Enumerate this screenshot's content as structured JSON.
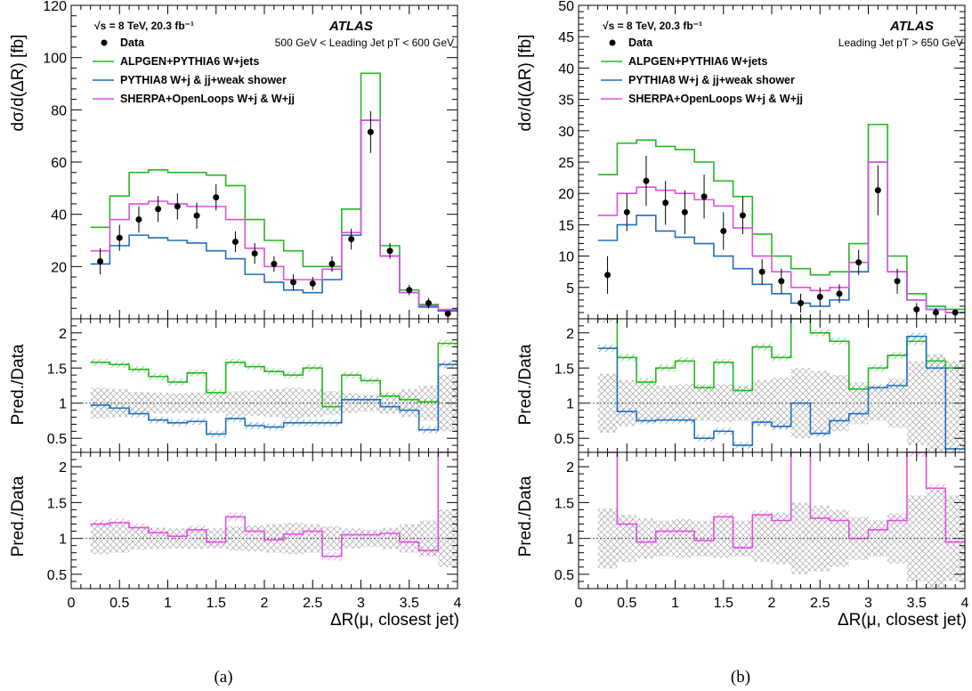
{
  "colors": {
    "data": "#000000",
    "alpgen": "#22b822",
    "pythia": "#1f6fbf",
    "sherpa": "#e050e0",
    "uncertainty": "#9a9a9a"
  },
  "chart_data": [
    {
      "type": "line",
      "panel_label": "(a)",
      "experiment": "ATLAS",
      "energy_label": "√s = 8 TeV, 20.3 fb⁻¹",
      "region_label": "500 GeV < Leading Jet pT < 600 GeV",
      "xlabel": "ΔR(μ, closest jet)",
      "ylabel_main": "dσ/d(ΔR) [fb]",
      "ylabel_ratio": "Pred./Data",
      "xlim": [
        0,
        4
      ],
      "ylim_main": [
        0,
        120
      ],
      "ylim_ratio": [
        0.3,
        2.2
      ],
      "x_ticks": [
        "0",
        "0.5",
        "1",
        "1.5",
        "2",
        "2.5",
        "3",
        "3.5",
        "4"
      ],
      "y_ticks_main": [
        "20",
        "40",
        "60",
        "80",
        "100",
        "120"
      ],
      "y_ticks_ratio": [
        "0.5",
        "1",
        "1.5",
        "2"
      ],
      "legend": {
        "data": "Data",
        "alpgen": "ALPGEN+PYTHIA6 W+jets",
        "pythia": "PYTHIA8 W+j & jj+weak shower",
        "sherpa": "SHERPA+OpenLoops W+j & W+jj"
      },
      "bin_edges": [
        0.2,
        0.4,
        0.6,
        0.8,
        1.0,
        1.2,
        1.4,
        1.6,
        1.8,
        2.0,
        2.2,
        2.4,
        2.6,
        2.8,
        3.0,
        3.2,
        3.4,
        3.6,
        3.8,
        4.0
      ],
      "data": {
        "x": [
          0.3,
          0.5,
          0.7,
          0.9,
          1.1,
          1.3,
          1.5,
          1.7,
          1.9,
          2.1,
          2.3,
          2.5,
          2.7,
          2.9,
          3.1,
          3.3,
          3.5,
          3.7,
          3.9
        ],
        "y": [
          22,
          31,
          38,
          42,
          43,
          39.5,
          46.5,
          29.5,
          25,
          21,
          14,
          13.5,
          21,
          30.5,
          71.5,
          26,
          11,
          6,
          2
        ],
        "err": [
          5,
          5,
          5,
          5,
          5,
          5,
          5,
          4,
          4,
          3,
          3,
          2.5,
          3,
          4,
          8,
          3,
          2,
          2,
          1
        ]
      },
      "series": [
        {
          "name": "ALPGEN+PYTHIA6 W+jets",
          "key": "alpgen",
          "values": [
            35,
            47,
            56,
            57,
            56,
            56,
            55,
            51,
            38,
            30,
            26,
            20,
            20,
            42,
            94,
            28,
            11,
            5.5,
            3.5
          ]
        },
        {
          "name": "PYTHIA8 W+j & jj+weak shower",
          "key": "pythia",
          "values": [
            21,
            28,
            32,
            31,
            30,
            29,
            26,
            23,
            17,
            14,
            11,
            10,
            15,
            32,
            76,
            24,
            10,
            4.5,
            3
          ]
        },
        {
          "name": "SHERPA+OpenLoops W+j & W+jj",
          "key": "sherpa",
          "values": [
            26,
            38,
            44,
            45,
            44,
            43,
            43,
            38,
            27,
            20,
            15,
            15,
            19,
            33,
            76,
            24,
            10,
            5,
            3.5
          ]
        }
      ],
      "ratio_top": {
        "band_halfwidth": [
          0.22,
          0.2,
          0.16,
          0.15,
          0.14,
          0.15,
          0.14,
          0.17,
          0.18,
          0.2,
          0.22,
          0.2,
          0.17,
          0.14,
          0.12,
          0.15,
          0.2,
          0.25,
          0.4
        ],
        "alpgen": [
          1.58,
          1.55,
          1.48,
          1.38,
          1.3,
          1.43,
          1.15,
          1.58,
          1.52,
          1.45,
          1.4,
          1.5,
          0.95,
          1.4,
          1.32,
          1.1,
          1.05,
          1.02,
          1.85
        ],
        "pythia": [
          0.97,
          0.93,
          0.85,
          0.76,
          0.72,
          0.74,
          0.56,
          0.78,
          0.68,
          0.66,
          0.72,
          0.72,
          0.72,
          1.05,
          1.05,
          0.95,
          0.9,
          0.62,
          1.55
        ]
      },
      "ratio_bottom": {
        "band_halfwidth": [
          0.22,
          0.2,
          0.16,
          0.15,
          0.14,
          0.15,
          0.14,
          0.17,
          0.18,
          0.2,
          0.22,
          0.2,
          0.17,
          0.14,
          0.12,
          0.15,
          0.2,
          0.25,
          0.4
        ],
        "sherpa": [
          1.2,
          1.22,
          1.15,
          1.08,
          1.03,
          1.12,
          0.95,
          1.3,
          1.1,
          0.98,
          1.06,
          1.1,
          0.75,
          1.05,
          1.05,
          1.07,
          0.95,
          0.83,
          2.25
        ]
      }
    },
    {
      "type": "line",
      "panel_label": "(b)",
      "experiment": "ATLAS",
      "energy_label": "√s = 8 TeV, 20.3 fb⁻¹",
      "region_label": "Leading Jet pT > 650 GeV",
      "xlabel": "ΔR(μ, closest jet)",
      "ylabel_main": "dσ/d(ΔR) [fb]",
      "ylabel_ratio": "Pred./Data",
      "xlim": [
        0,
        4
      ],
      "ylim_main": [
        0,
        50
      ],
      "ylim_ratio": [
        0.3,
        2.2
      ],
      "x_ticks": [
        "0",
        "0.5",
        "1",
        "1.5",
        "2",
        "2.5",
        "3",
        "3.5",
        "4"
      ],
      "y_ticks_main": [
        "5",
        "10",
        "15",
        "20",
        "25",
        "30",
        "35",
        "40",
        "45",
        "50"
      ],
      "y_ticks_ratio": [
        "0.5",
        "1",
        "1.5",
        "2"
      ],
      "legend": {
        "data": "Data",
        "alpgen": "ALPGEN+PYTHIA6 W+jets",
        "pythia": "PYTHIA8 W+j & jj+weak shower",
        "sherpa": "SHERPA+OpenLoops W+j & W+jj"
      },
      "bin_edges": [
        0.2,
        0.4,
        0.6,
        0.8,
        1.0,
        1.2,
        1.4,
        1.6,
        1.8,
        2.0,
        2.2,
        2.4,
        2.6,
        2.8,
        3.0,
        3.2,
        3.4,
        3.6,
        3.8,
        4.0
      ],
      "data": {
        "x": [
          0.3,
          0.5,
          0.7,
          0.9,
          1.1,
          1.3,
          1.5,
          1.7,
          1.9,
          2.1,
          2.3,
          2.5,
          2.7,
          2.9,
          3.1,
          3.3,
          3.5,
          3.7,
          3.9
        ],
        "y": [
          7,
          17,
          22,
          18.5,
          17,
          19.5,
          14,
          16.5,
          7.5,
          6,
          2.5,
          3.5,
          4,
          9,
          20.5,
          6,
          1.5,
          1,
          1
        ],
        "err": [
          3,
          3,
          4,
          3.5,
          3.5,
          3.5,
          3,
          3,
          2,
          2,
          1.5,
          1.5,
          1.5,
          2,
          4,
          2,
          1,
          0.7,
          0.5
        ]
      },
      "series": [
        {
          "name": "ALPGEN+PYTHIA6 W+jets",
          "key": "alpgen",
          "values": [
            23,
            28,
            28.5,
            27.5,
            27,
            25,
            22,
            19.5,
            13.5,
            10,
            8,
            7,
            7.5,
            12,
            31,
            10,
            4,
            2,
            1.5
          ]
        },
        {
          "name": "PYTHIA8 W+j & jj+weak shower",
          "key": "pythia",
          "values": [
            12.5,
            15,
            16.5,
            14,
            13,
            12,
            10,
            8,
            5.5,
            4,
            2.5,
            2,
            3,
            7.5,
            25,
            7.5,
            3,
            1.5,
            1
          ]
        },
        {
          "name": "SHERPA+OpenLoops W+j & W+jj",
          "key": "sherpa",
          "values": [
            16.5,
            20,
            21,
            20.5,
            20,
            19,
            18,
            14.5,
            10,
            7.5,
            5,
            4.5,
            5,
            9,
            25,
            7.5,
            3,
            1.5,
            1
          ]
        }
      ],
      "ratio_top": {
        "band_halfwidth": [
          0.42,
          0.33,
          0.28,
          0.25,
          0.27,
          0.25,
          0.27,
          0.25,
          0.33,
          0.36,
          0.5,
          0.46,
          0.4,
          0.3,
          0.25,
          0.35,
          0.6,
          0.7,
          0.6
        ],
        "alpgen": [
          2.2,
          1.65,
          1.3,
          1.5,
          1.6,
          1.22,
          1.58,
          1.18,
          1.8,
          1.65,
          3.2,
          2.0,
          1.88,
          1.2,
          1.5,
          1.68,
          1.88,
          1.6,
          1.5
        ],
        "pythia": [
          1.78,
          0.88,
          0.75,
          0.76,
          0.76,
          0.5,
          0.6,
          0.4,
          0.73,
          0.67,
          1.0,
          0.57,
          0.75,
          0.85,
          1.22,
          1.25,
          1.95,
          1.5,
          0.35
        ]
      },
      "ratio_bottom": {
        "band_halfwidth": [
          0.42,
          0.33,
          0.28,
          0.25,
          0.27,
          0.25,
          0.27,
          0.25,
          0.33,
          0.36,
          0.5,
          0.46,
          0.4,
          0.3,
          0.25,
          0.35,
          0.6,
          0.7,
          0.6
        ],
        "sherpa": [
          2.3,
          1.2,
          0.95,
          1.1,
          1.1,
          0.97,
          1.3,
          0.87,
          1.33,
          1.25,
          2.3,
          1.28,
          1.25,
          1.0,
          1.12,
          1.25,
          2.2,
          1.7,
          0.95
        ]
      }
    }
  ]
}
